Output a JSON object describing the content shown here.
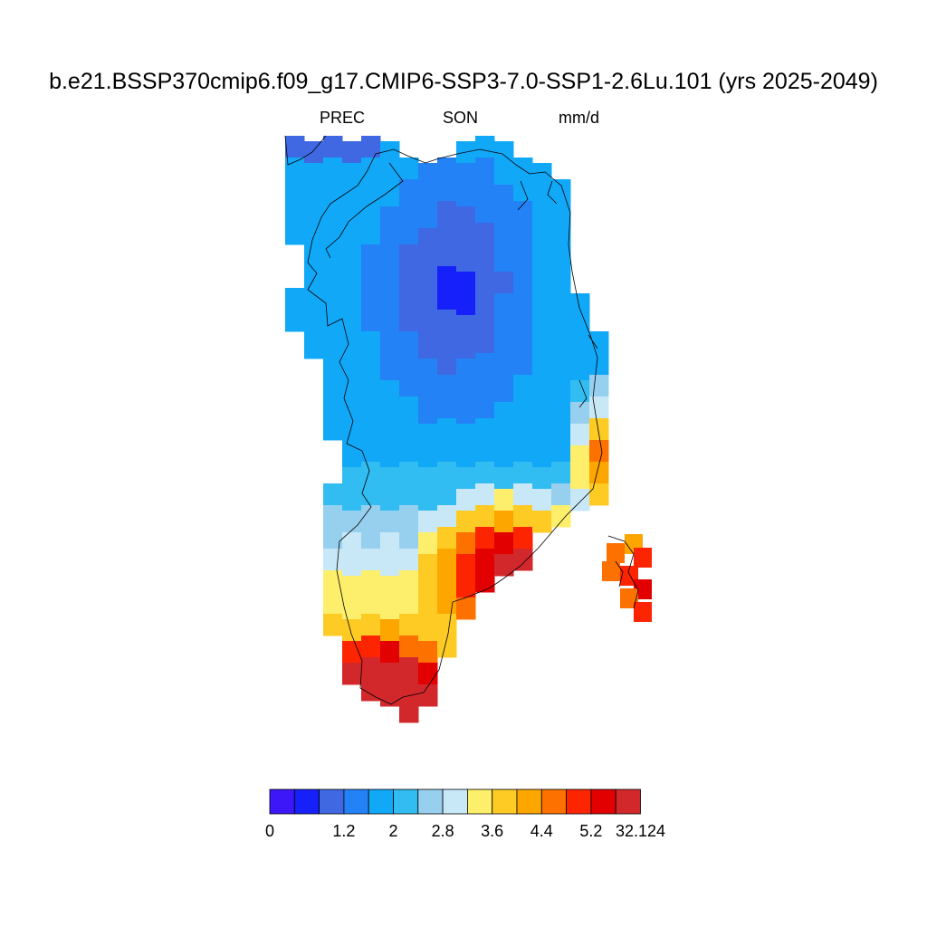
{
  "chart_data": {
    "type": "heatmap",
    "title": "b.e21.BSSP370cmip6.f09_g17.CMIP6-SSP3-7.0-SSP1-2.6Lu.101 (yrs 2025-2049)",
    "variable": "PREC",
    "season": "SON",
    "units": "mm/d",
    "region": "Greenland",
    "colorbar": {
      "orientation": "horizontal",
      "tick_labels": [
        "0",
        "1.2",
        "2",
        "2.8",
        "3.6",
        "4.4",
        "5.2",
        "32.124"
      ],
      "colors": [
        "#3d17f7",
        "#1620fa",
        "#3f68e2",
        "#2382f5",
        "#11a8f8",
        "#32bdf2",
        "#97d0ee",
        "#c8e8f8",
        "#fdef6b",
        "#fdcb24",
        "#fda600",
        "#fd7100",
        "#fd2400",
        "#e20000",
        "#d2282c"
      ]
    }
  }
}
